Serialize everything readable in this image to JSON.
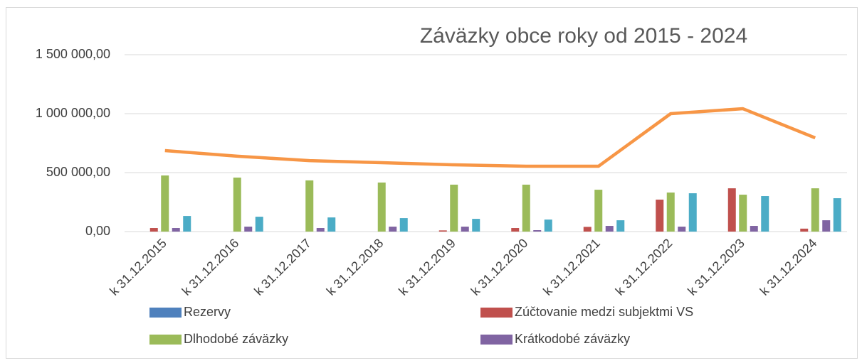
{
  "chart_data": {
    "type": "bar",
    "title": "Záväzky obce roky od 2015 - 2024",
    "categories": [
      "k 31.12.2015",
      "k 31.12.2016",
      "k 31.12.2017",
      "k 31.12.2018",
      "k 31.12.2019",
      "k 31.12.2020",
      "k 31.12.2021",
      "k 31.12.2022",
      "k 31.12.2023",
      "k 31.12.2024"
    ],
    "series": [
      {
        "name": "Rezervy",
        "color": "#4f81bd",
        "values": [
          0,
          0,
          0,
          0,
          0,
          0,
          0,
          0,
          0,
          0
        ]
      },
      {
        "name": "Zúčtovanie medzi subjektmi VS",
        "color": "#c0504d",
        "values": [
          30000,
          0,
          0,
          0,
          10000,
          30000,
          40000,
          271000,
          367000,
          25000
        ]
      },
      {
        "name": "Dlhodobé záväzky",
        "color": "#9bbb59",
        "values": [
          476000,
          458000,
          434000,
          416000,
          398000,
          398000,
          355000,
          331000,
          313000,
          367000
        ]
      },
      {
        "name": "Krátkodobé záväzky",
        "color": "#8064a2",
        "values": [
          30000,
          42000,
          30000,
          42000,
          42000,
          12000,
          48000,
          42000,
          48000,
          96000
        ]
      },
      {
        "color": "#4bacc6",
        "values": [
          132000,
          126000,
          120000,
          114000,
          108000,
          102000,
          96000,
          325000,
          301000,
          283000
        ]
      },
      {
        "color": "#f79646",
        "type": "line",
        "values": [
          687000,
          639000,
          602000,
          584000,
          566000,
          554000,
          554000,
          1000000,
          1042000,
          795000
        ]
      }
    ],
    "ylim": [
      0,
      1500000
    ],
    "yticks": [
      {
        "value": 0,
        "label": "0,00"
      },
      {
        "value": 500000,
        "label": "500 000,00"
      },
      {
        "value": 1000000,
        "label": "1 000 000,00"
      },
      {
        "value": 1500000,
        "label": "1 500 000,00"
      }
    ],
    "grid": true,
    "legend": "bottom"
  }
}
